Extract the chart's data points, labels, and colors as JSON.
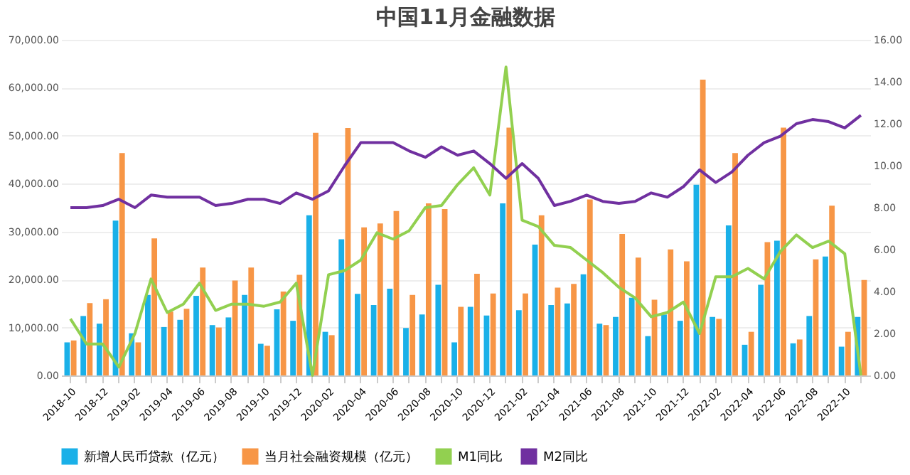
{
  "chart_data": {
    "type": "bar",
    "title": "中国11月金融数据",
    "categories": [
      "2018-10",
      null,
      "2018-12",
      null,
      "2019-02",
      null,
      "2019-04",
      null,
      "2019-06",
      null,
      "2019-08",
      null,
      "2019-10",
      null,
      "2019-12",
      null,
      "2020-02",
      null,
      "2020-04",
      null,
      "2020-06",
      null,
      "2020-08",
      null,
      "2020-10",
      null,
      "2020-12",
      null,
      "2021-02",
      null,
      "2021-04",
      null,
      "2021-06",
      null,
      "2021-08",
      null,
      "2021-10",
      null,
      "2021-12",
      null,
      "2022-02",
      null,
      "2022-04",
      null,
      "2022-06",
      null,
      "2022-08",
      null,
      "2022-10",
      null
    ],
    "series": [
      {
        "name": "新增人民币贷款（亿元）",
        "color": "#1ab0e8",
        "values": [
          6900,
          12400,
          10800,
          32300,
          8800,
          16800,
          10100,
          11600,
          16600,
          10500,
          12100,
          16800,
          6600,
          13800,
          11400,
          33400,
          9100,
          28400,
          17000,
          14700,
          18100,
          9900,
          12700,
          18900,
          6900,
          14300,
          12500,
          35900,
          13600,
          27300,
          14700,
          15000,
          21100,
          10800,
          12200,
          16200,
          8200,
          12700,
          11400,
          39800,
          12200,
          31300,
          6400,
          18900,
          28100,
          6700,
          12400,
          24800,
          6000,
          12200
        ]
      },
      {
        "name": "当月社会融资规模（亿元）",
        "color": "#f79646",
        "values": [
          7300,
          15100,
          15900,
          46400,
          6900,
          28600,
          13300,
          13900,
          22500,
          10000,
          19800,
          22500,
          6200,
          17500,
          21000,
          50600,
          8400,
          51600,
          30900,
          31700,
          34300,
          16800,
          35900,
          34700,
          14300,
          21200,
          17100,
          51700,
          17100,
          33400,
          18300,
          19100,
          36700,
          10500,
          29500,
          24600,
          15800,
          26300,
          23800,
          61700,
          11800,
          46400,
          9100,
          27800,
          51700,
          7500,
          24200,
          35400,
          9100,
          19900
        ]
      },
      {
        "name": "M1同比",
        "type": "line",
        "axis": "y2",
        "color": "#92d050",
        "values": [
          2.7,
          1.5,
          1.5,
          0.4,
          2.0,
          4.6,
          3.0,
          3.4,
          4.4,
          3.1,
          3.4,
          3.4,
          3.3,
          3.5,
          4.4,
          0.0,
          4.8,
          5.0,
          5.5,
          6.8,
          6.5,
          6.9,
          8.0,
          8.1,
          9.1,
          9.9,
          8.6,
          14.7,
          7.4,
          7.1,
          6.2,
          6.1,
          5.5,
          4.9,
          4.2,
          3.7,
          2.8,
          3.0,
          3.5,
          2.0,
          4.7,
          4.7,
          5.1,
          4.6,
          5.9,
          6.7,
          6.1,
          6.4,
          5.8,
          0.0
        ]
      },
      {
        "name": "M2同比",
        "type": "line",
        "axis": "y2",
        "color": "#7030a0",
        "values": [
          8.0,
          8.0,
          8.1,
          8.4,
          8.0,
          8.6,
          8.5,
          8.5,
          8.5,
          8.1,
          8.2,
          8.4,
          8.4,
          8.2,
          8.7,
          8.4,
          8.8,
          10.0,
          11.1,
          11.1,
          11.1,
          10.7,
          10.4,
          10.9,
          10.5,
          10.7,
          10.1,
          9.4,
          10.1,
          9.4,
          8.1,
          8.3,
          8.6,
          8.3,
          8.2,
          8.3,
          8.7,
          8.5,
          9.0,
          9.8,
          9.2,
          9.7,
          10.5,
          11.1,
          11.4,
          12.0,
          12.2,
          12.1,
          11.8,
          12.4
        ]
      }
    ],
    "ylim": [
      0,
      70000
    ],
    "yticks": [
      {
        "value": 0,
        "label": "0.00"
      },
      {
        "value": 10000,
        "label": "10,000.00"
      },
      {
        "value": 20000,
        "label": "20,000.00"
      },
      {
        "value": 30000,
        "label": "30,000.00"
      },
      {
        "value": 40000,
        "label": "40,000.00"
      },
      {
        "value": 50000,
        "label": "50,000.00"
      },
      {
        "value": 60000,
        "label": "60,000.00"
      },
      {
        "value": 70000,
        "label": "70,000.00"
      }
    ],
    "y2lim": [
      0,
      16
    ],
    "y2ticks": [
      {
        "value": 0,
        "label": "0.00"
      },
      {
        "value": 2,
        "label": "2.00"
      },
      {
        "value": 4,
        "label": "4.00"
      },
      {
        "value": 6,
        "label": "6.00"
      },
      {
        "value": 8,
        "label": "8.00"
      },
      {
        "value": 10,
        "label": "10.00"
      },
      {
        "value": 12,
        "label": "12.00"
      },
      {
        "value": 14,
        "label": "14.00"
      },
      {
        "value": 16,
        "label": "16.00"
      }
    ],
    "grid": "y",
    "legend": "bottom",
    "marker": "none",
    "line_style": "solid"
  }
}
